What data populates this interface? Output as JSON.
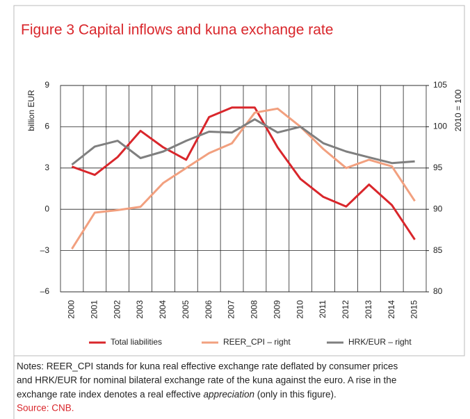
{
  "chart_data": {
    "type": "line",
    "title": "Figure 3 Capital inflows and kuna exchange rate",
    "ylabel": "billion EUR",
    "y2label": "2010 = 100",
    "categories": [
      "2000",
      "2001",
      "2002",
      "2003",
      "2004",
      "2005",
      "2006",
      "2007",
      "2008",
      "2009",
      "2010",
      "2011",
      "2012",
      "2013",
      "2014",
      "2015"
    ],
    "series": [
      {
        "name": "Total liabilities",
        "color": "#d9262b",
        "values": [
          3.1,
          2.5,
          3.8,
          5.7,
          4.5,
          3.6,
          6.7,
          7.4,
          7.4,
          4.5,
          2.2,
          0.9,
          0.2,
          1.8,
          0.3,
          -2.2
        ]
      },
      {
        "name": "REER_CPI – right",
        "color": "#f2a07f",
        "axis": "y2",
        "values": [
          85.2,
          89.6,
          89.9,
          90.3,
          93.2,
          95.0,
          96.8,
          98.0,
          101.7,
          102.2,
          100.0,
          97.3,
          95.0,
          96.0,
          95.2,
          91.0
        ]
      },
      {
        "name": "HRK/EUR – right",
        "color": "#7f7f7f",
        "axis": "y2",
        "values": [
          95.4,
          97.6,
          98.3,
          96.2,
          97.0,
          98.3,
          99.4,
          99.3,
          100.9,
          99.3,
          100.0,
          98.0,
          97.0,
          96.3,
          95.6,
          95.8
        ]
      }
    ],
    "ylim": [
      -6,
      9
    ],
    "yticks": [
      {
        "value": -6,
        "label": "–6"
      },
      {
        "value": -3,
        "label": "–3"
      },
      0,
      3,
      6,
      9
    ],
    "y2lim": [
      80,
      105
    ],
    "y2ticks": [
      80,
      85,
      90,
      95,
      100,
      105
    ],
    "grid": true,
    "legend": "bottom"
  },
  "notes": {
    "line1": "Notes: REER_CPI stands for kuna real effective exchange rate deflated by consumer prices",
    "line2": "and HRK/EUR for nominal bilateral exchange rate of the kuna against the euro. A rise in the",
    "line3a": "exchange rate index denotes a real effective ",
    "line3b": "appreciation",
    "line3c": " (only in this figure).",
    "source": "Source: CNB."
  }
}
